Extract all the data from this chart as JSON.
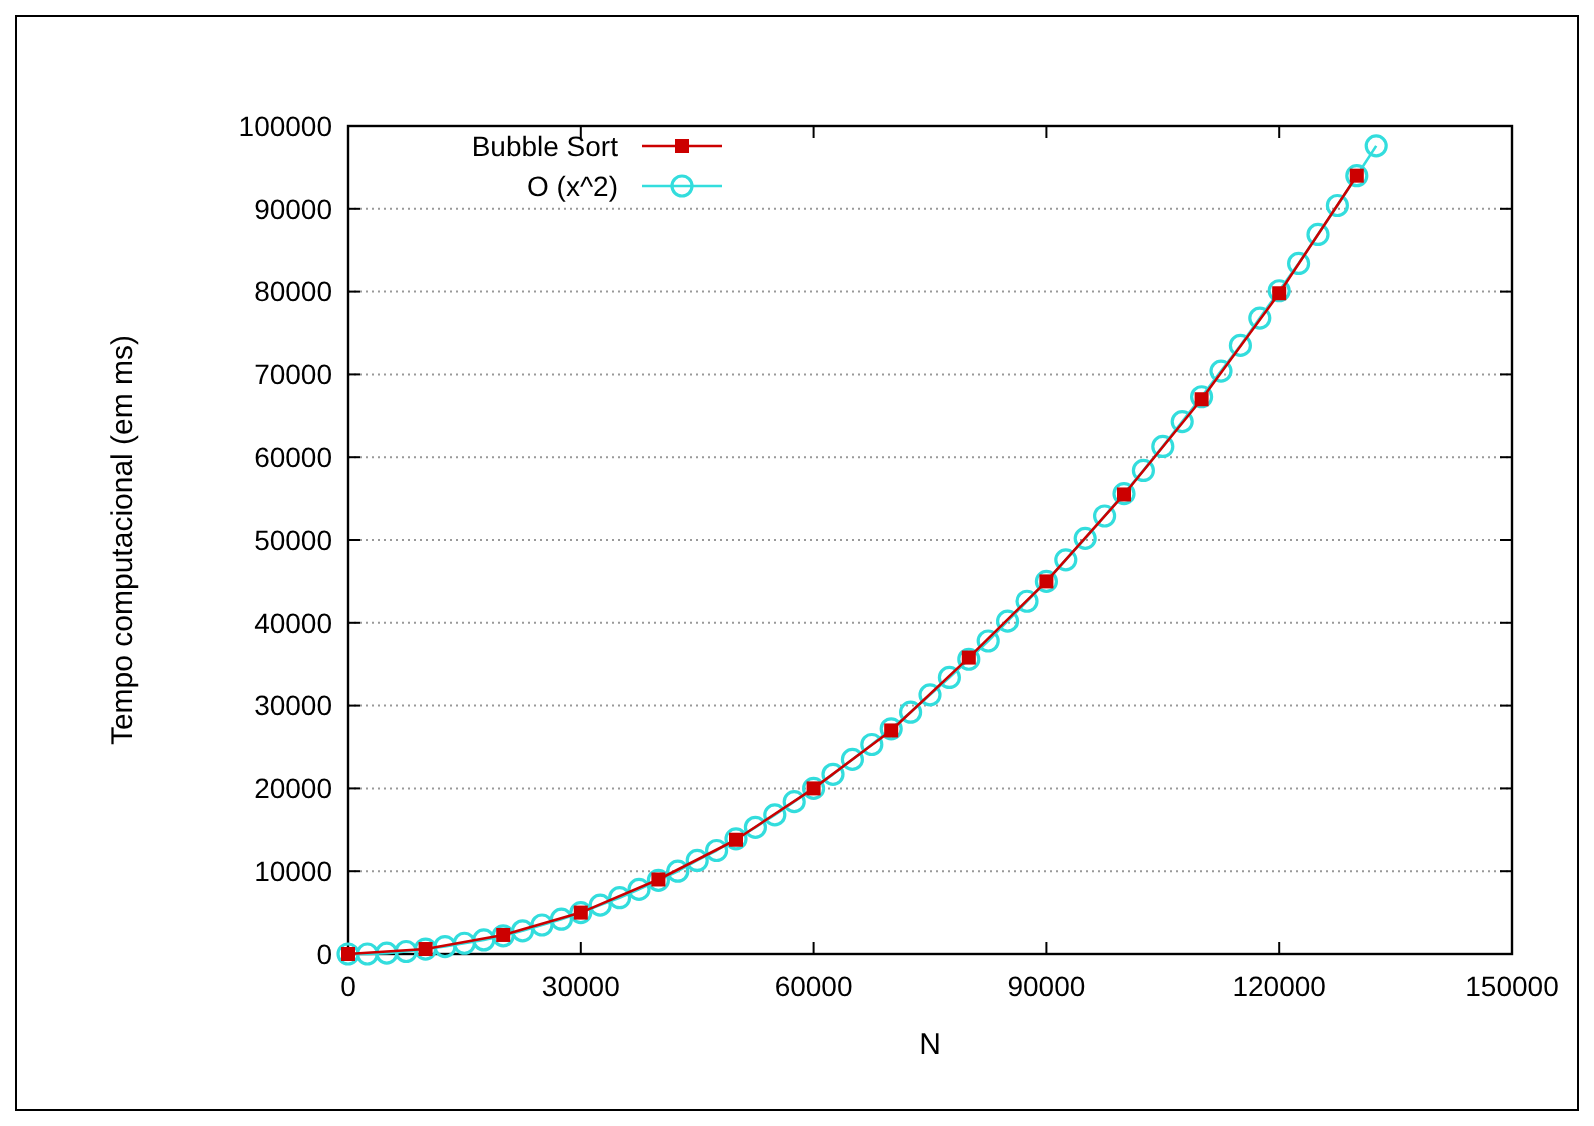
{
  "chart_data": {
    "type": "line",
    "xlabel": "N",
    "ylabel": "Tempo computacional (em ms)",
    "xlim": [
      0,
      150000
    ],
    "xticks": [
      0,
      30000,
      60000,
      90000,
      120000,
      150000
    ],
    "ylim": [
      0,
      100000
    ],
    "yticks": [
      0,
      10000,
      20000,
      30000,
      40000,
      50000,
      60000,
      70000,
      80000,
      90000,
      100000
    ],
    "grid": "y",
    "legend": "top left",
    "series": [
      {
        "name": "O (x^2)",
        "color": "#33dddd",
        "marker": "circle",
        "x": [
          0,
          2500,
          5000,
          7500,
          10000,
          12500,
          15000,
          17500,
          20000,
          22500,
          25000,
          27500,
          30000,
          32500,
          35000,
          37500,
          40000,
          42500,
          45000,
          47500,
          50000,
          52500,
          55000,
          57500,
          60000,
          62500,
          65000,
          67500,
          70000,
          72500,
          75000,
          77500,
          80000,
          82500,
          85000,
          87500,
          90000,
          92500,
          95000,
          97500,
          100000,
          102500,
          105000,
          107500,
          110000,
          112500,
          115000,
          117500,
          120000,
          122500,
          125000,
          127500,
          130000,
          132500
        ],
        "values": [
          0,
          0,
          100,
          300,
          600,
          900,
          1300,
          1700,
          2200,
          2800,
          3500,
          4200,
          5000,
          5900,
          6800,
          7800,
          8900,
          10000,
          11300,
          12500,
          13900,
          15300,
          16800,
          18400,
          20000,
          21700,
          23500,
          25300,
          27200,
          29200,
          31300,
          33400,
          35600,
          37800,
          40200,
          42600,
          45000,
          47600,
          50200,
          52900,
          55600,
          58400,
          61300,
          64300,
          67300,
          70400,
          73500,
          76800,
          80100,
          83400,
          86900,
          90400,
          94000,
          97600
        ]
      },
      {
        "name": "Bubble Sort",
        "color": "#cc0000",
        "marker": "square",
        "x": [
          0,
          10000,
          20000,
          30000,
          40000,
          50000,
          60000,
          70000,
          80000,
          90000,
          100000,
          110000,
          120000,
          130000
        ],
        "values": [
          0,
          600,
          2300,
          5000,
          9000,
          13800,
          20000,
          27000,
          35800,
          45000,
          55500,
          67000,
          79800,
          94000
        ]
      }
    ]
  }
}
